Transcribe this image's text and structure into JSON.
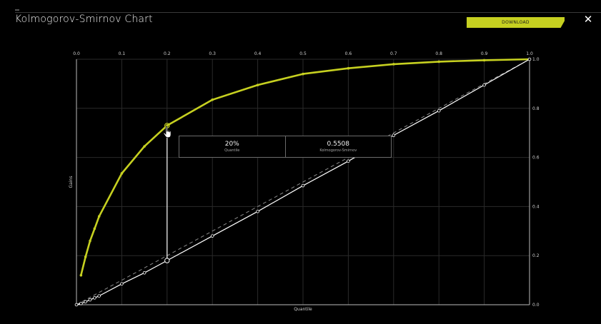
{
  "header": {
    "title": "Kolmogorov-Smirnov Chart",
    "download_label": "DOWNLOAD",
    "close_icon": "close-icon",
    "close_glyph": "✕"
  },
  "colors": {
    "background": "#000000",
    "accent": "#c6d020",
    "white_series": "#ffffff",
    "baseline": "#8a8a8a",
    "grid": "#2a2a2a"
  },
  "tooltip": {
    "quantile_value": "20%",
    "quantile_label": "Quantile",
    "ks_value": "0.5508",
    "ks_label": "Kolmogorov-Smirnov"
  },
  "chart_data": {
    "type": "line",
    "xlabel": "Quantile",
    "ylabel": "Gains",
    "xlim": [
      0,
      1
    ],
    "ylim": [
      0,
      1
    ],
    "x_ticks": [
      "0.0",
      "0.1",
      "0.2",
      "0.3",
      "0.4",
      "0.5",
      "0.6",
      "0.7",
      "0.8",
      "0.9",
      "1.0"
    ],
    "y_ticks": [
      "0.0",
      "0.2",
      "0.4",
      "0.6",
      "0.8",
      "1.0"
    ],
    "grid": true,
    "series": [
      {
        "color": "#c6d020",
        "points": [
          [
            0.01,
            0.12
          ],
          [
            0.02,
            0.195
          ],
          [
            0.03,
            0.26
          ],
          [
            0.04,
            0.31
          ],
          [
            0.05,
            0.36
          ],
          [
            0.1,
            0.535
          ],
          [
            0.15,
            0.645
          ],
          [
            0.2,
            0.73
          ],
          [
            0.3,
            0.835
          ],
          [
            0.4,
            0.895
          ],
          [
            0.5,
            0.94
          ],
          [
            0.6,
            0.963
          ],
          [
            0.7,
            0.98
          ],
          [
            0.8,
            0.99
          ],
          [
            0.9,
            0.996
          ],
          [
            1.0,
            1.0
          ]
        ]
      },
      {
        "color": "#ffffff",
        "points": [
          [
            0.0,
            0.0
          ],
          [
            0.01,
            0.005
          ],
          [
            0.02,
            0.012
          ],
          [
            0.03,
            0.02
          ],
          [
            0.04,
            0.028
          ],
          [
            0.05,
            0.036
          ],
          [
            0.1,
            0.085
          ],
          [
            0.15,
            0.13
          ],
          [
            0.2,
            0.18
          ],
          [
            0.3,
            0.28
          ],
          [
            0.4,
            0.38
          ],
          [
            0.5,
            0.485
          ],
          [
            0.6,
            0.585
          ],
          [
            0.7,
            0.69
          ],
          [
            0.8,
            0.79
          ],
          [
            0.9,
            0.895
          ],
          [
            1.0,
            1.0
          ]
        ]
      }
    ],
    "baseline": [
      [
        0,
        0
      ],
      [
        1,
        1
      ]
    ],
    "ks_marker": {
      "x": 0.2,
      "y_top": 0.73,
      "y_bottom": 0.18,
      "value": 0.5508
    }
  }
}
